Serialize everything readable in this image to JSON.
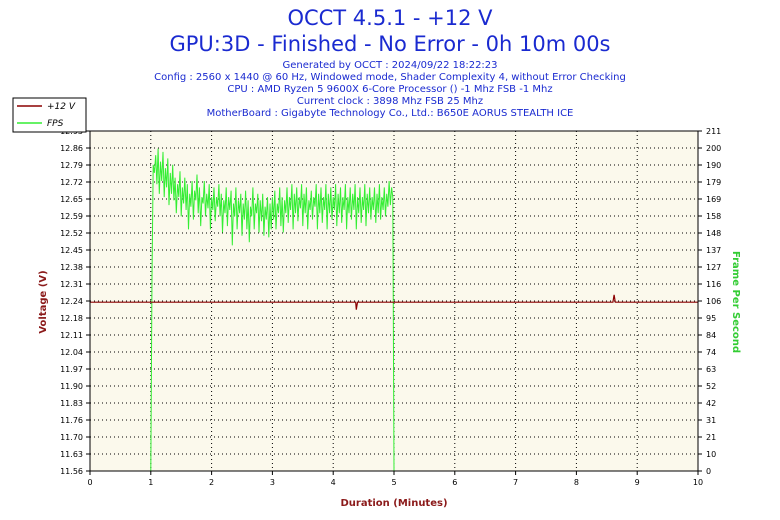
{
  "header": {
    "title": "OCCT 4.5.1 - +12 V",
    "subtitle": "GPU:3D - Finished - No Error - 0h 10m 00s",
    "info_lines": [
      "Generated by OCCT : 2024/09/22 18:22:23",
      "Config : 2560 x 1440 @ 60 Hz, Windowed mode, Shader Complexity 4, without Error Checking",
      "CPU : AMD Ryzen 5 9600X 6-Core Processor () -1 Mhz FSB -1 Mhz",
      "Current clock : 3898 Mhz FSB 25 Mhz",
      "MotherBoard : Gigabyte Technology Co., Ltd.: B650E AORUS STEALTH ICE"
    ]
  },
  "colors": {
    "voltage": "#8b0000",
    "fps": "#33ee33",
    "plot_bg": "#fbf9ec",
    "title": "#1a2ad0",
    "xlabel": "#8b1a1a",
    "ylabel_right": "#33cc33"
  },
  "chart_data": {
    "type": "line",
    "xlabel": "Duration (Minutes)",
    "ylabel_left": "Voltage (V)",
    "ylabel_right": "Frame Per Second",
    "x_ticks": [
      "0",
      "1",
      "2",
      "3",
      "4",
      "5",
      "6",
      "7",
      "8",
      "9",
      "10"
    ],
    "xlim": [
      0,
      10
    ],
    "y_left_ticks": [
      "11.56",
      "11.63",
      "11.70",
      "11.76",
      "11.83",
      "11.90",
      "11.97",
      "12.04",
      "12.11",
      "12.18",
      "12.24",
      "12.31",
      "12.38",
      "12.45",
      "12.52",
      "12.59",
      "12.65",
      "12.72",
      "12.79",
      "12.86",
      "12.93"
    ],
    "ylim_left": [
      11.56,
      12.93
    ],
    "y_right_ticks": [
      "0",
      "10",
      "21",
      "31",
      "42",
      "52",
      "63",
      "74",
      "84",
      "95",
      "106",
      "116",
      "127",
      "137",
      "148",
      "158",
      "169",
      "179",
      "190",
      "200",
      "211"
    ],
    "ylim_right": [
      0,
      211
    ],
    "grid": true,
    "legend_position": "top-left",
    "series": [
      {
        "name": "+12 V",
        "axis": "left",
        "points": [
          [
            0,
            12.24
          ],
          [
            4.37,
            12.24
          ],
          [
            4.38,
            12.21
          ],
          [
            4.4,
            12.24
          ],
          [
            8.6,
            12.24
          ],
          [
            8.62,
            12.27
          ],
          [
            8.64,
            12.24
          ],
          [
            10,
            12.24
          ]
        ]
      },
      {
        "name": "FPS",
        "axis": "right",
        "points": [
          [
            1.0,
            0
          ],
          [
            1.02,
            120
          ],
          [
            1.04,
            190
          ],
          [
            1.06,
            185
          ],
          [
            1.08,
            196
          ],
          [
            1.1,
            178
          ],
          [
            1.12,
            200
          ],
          [
            1.14,
            172
          ],
          [
            1.16,
            192
          ],
          [
            1.18,
            180
          ],
          [
            1.2,
            198
          ],
          [
            1.22,
            170
          ],
          [
            1.24,
            188
          ],
          [
            1.26,
            176
          ],
          [
            1.28,
            194
          ],
          [
            1.3,
            165
          ],
          [
            1.32,
            185
          ],
          [
            1.34,
            172
          ],
          [
            1.36,
            190
          ],
          [
            1.38,
            168
          ],
          [
            1.4,
            182
          ],
          [
            1.42,
            160
          ],
          [
            1.44,
            178
          ],
          [
            1.46,
            170
          ],
          [
            1.48,
            186
          ],
          [
            1.5,
            158
          ],
          [
            1.52,
            176
          ],
          [
            1.54,
            166
          ],
          [
            1.56,
            182
          ],
          [
            1.58,
            162
          ],
          [
            1.6,
            178
          ],
          [
            1.62,
            150
          ],
          [
            1.64,
            172
          ],
          [
            1.66,
            164
          ],
          [
            1.68,
            180
          ],
          [
            1.7,
            156
          ],
          [
            1.72,
            174
          ],
          [
            1.74,
            168
          ],
          [
            1.76,
            184
          ],
          [
            1.78,
            160
          ],
          [
            1.8,
            176
          ],
          [
            1.82,
            152
          ],
          [
            1.84,
            170
          ],
          [
            1.86,
            166
          ],
          [
            1.88,
            180
          ],
          [
            1.9,
            158
          ],
          [
            1.92,
            172
          ],
          [
            1.94,
            163
          ],
          [
            1.96,
            178
          ],
          [
            1.98,
            150
          ],
          [
            2.0,
            170
          ],
          [
            2.02,
            162
          ],
          [
            2.04,
            176
          ],
          [
            2.06,
            155
          ],
          [
            2.08,
            170
          ],
          [
            2.1,
            164
          ],
          [
            2.12,
            178
          ],
          [
            2.14,
            158
          ],
          [
            2.16,
            172
          ],
          [
            2.18,
            148
          ],
          [
            2.2,
            168
          ],
          [
            2.22,
            160
          ],
          [
            2.24,
            176
          ],
          [
            2.26,
            152
          ],
          [
            2.28,
            170
          ],
          [
            2.3,
            162
          ],
          [
            2.32,
            174
          ],
          [
            2.34,
            140
          ],
          [
            2.36,
            166
          ],
          [
            2.38,
            158
          ],
          [
            2.4,
            176
          ],
          [
            2.42,
            150
          ],
          [
            2.44,
            168
          ],
          [
            2.46,
            160
          ],
          [
            2.48,
            172
          ],
          [
            2.5,
            146
          ],
          [
            2.52,
            166
          ],
          [
            2.54,
            156
          ],
          [
            2.56,
            174
          ],
          [
            2.58,
            150
          ],
          [
            2.6,
            168
          ],
          [
            2.62,
            142
          ],
          [
            2.64,
            164
          ],
          [
            2.66,
            158
          ],
          [
            2.68,
            176
          ],
          [
            2.7,
            150
          ],
          [
            2.72,
            166
          ],
          [
            2.74,
            160
          ],
          [
            2.76,
            172
          ],
          [
            2.78,
            148
          ],
          [
            2.8,
            168
          ],
          [
            2.82,
            155
          ],
          [
            2.84,
            172
          ],
          [
            2.86,
            146
          ],
          [
            2.88,
            164
          ],
          [
            2.9,
            156
          ],
          [
            2.92,
            170
          ],
          [
            2.94,
            145
          ],
          [
            2.96,
            166
          ],
          [
            2.98,
            150
          ],
          [
            3.0,
            170
          ],
          [
            3.02,
            156
          ],
          [
            3.04,
            174
          ],
          [
            3.06,
            150
          ],
          [
            3.08,
            166
          ],
          [
            3.1,
            160
          ],
          [
            3.12,
            176
          ],
          [
            3.14,
            152
          ],
          [
            3.16,
            170
          ],
          [
            3.18,
            148
          ],
          [
            3.2,
            168
          ],
          [
            3.22,
            160
          ],
          [
            3.24,
            176
          ],
          [
            3.26,
            154
          ],
          [
            3.28,
            170
          ],
          [
            3.3,
            162
          ],
          [
            3.32,
            178
          ],
          [
            3.34,
            150
          ],
          [
            3.36,
            172
          ],
          [
            3.38,
            160
          ],
          [
            3.4,
            176
          ],
          [
            3.42,
            155
          ],
          [
            3.44,
            170
          ],
          [
            3.46,
            163
          ],
          [
            3.48,
            178
          ],
          [
            3.5,
            152
          ],
          [
            3.52,
            172
          ],
          [
            3.54,
            160
          ],
          [
            3.56,
            176
          ],
          [
            3.58,
            150
          ],
          [
            3.6,
            168
          ],
          [
            3.62,
            162
          ],
          [
            3.64,
            174
          ],
          [
            3.66,
            156
          ],
          [
            3.68,
            170
          ],
          [
            3.7,
            164
          ],
          [
            3.72,
            178
          ],
          [
            3.74,
            150
          ],
          [
            3.76,
            172
          ],
          [
            3.78,
            160
          ],
          [
            3.8,
            176
          ],
          [
            3.82,
            154
          ],
          [
            3.84,
            170
          ],
          [
            3.86,
            162
          ],
          [
            3.88,
            178
          ],
          [
            3.9,
            150
          ],
          [
            3.92,
            172
          ],
          [
            3.94,
            160
          ],
          [
            3.96,
            176
          ],
          [
            3.98,
            156
          ],
          [
            4.0,
            170
          ],
          [
            4.02,
            162
          ],
          [
            4.04,
            178
          ],
          [
            4.06,
            152
          ],
          [
            4.08,
            172
          ],
          [
            4.1,
            160
          ],
          [
            4.12,
            176
          ],
          [
            4.14,
            154
          ],
          [
            4.16,
            170
          ],
          [
            4.18,
            162
          ],
          [
            4.2,
            178
          ],
          [
            4.22,
            150
          ],
          [
            4.24,
            170
          ],
          [
            4.26,
            160
          ],
          [
            4.28,
            176
          ],
          [
            4.3,
            156
          ],
          [
            4.32,
            172
          ],
          [
            4.34,
            162
          ],
          [
            4.36,
            178
          ],
          [
            4.38,
            150
          ],
          [
            4.4,
            170
          ],
          [
            4.42,
            160
          ],
          [
            4.44,
            176
          ],
          [
            4.46,
            154
          ],
          [
            4.48,
            170
          ],
          [
            4.5,
            162
          ],
          [
            4.52,
            178
          ],
          [
            4.54,
            152
          ],
          [
            4.56,
            172
          ],
          [
            4.58,
            160
          ],
          [
            4.6,
            176
          ],
          [
            4.62,
            156
          ],
          [
            4.64,
            170
          ],
          [
            4.66,
            162
          ],
          [
            4.68,
            176
          ],
          [
            4.7,
            154
          ],
          [
            4.72,
            172
          ],
          [
            4.74,
            160
          ],
          [
            4.76,
            178
          ],
          [
            4.78,
            156
          ],
          [
            4.8,
            170
          ],
          [
            4.82,
            162
          ],
          [
            4.84,
            176
          ],
          [
            4.86,
            158
          ],
          [
            4.88,
            172
          ],
          [
            4.9,
            164
          ],
          [
            4.92,
            180
          ],
          [
            4.94,
            165
          ],
          [
            4.96,
            176
          ],
          [
            4.98,
            170
          ],
          [
            5.0,
            0
          ]
        ]
      }
    ]
  }
}
